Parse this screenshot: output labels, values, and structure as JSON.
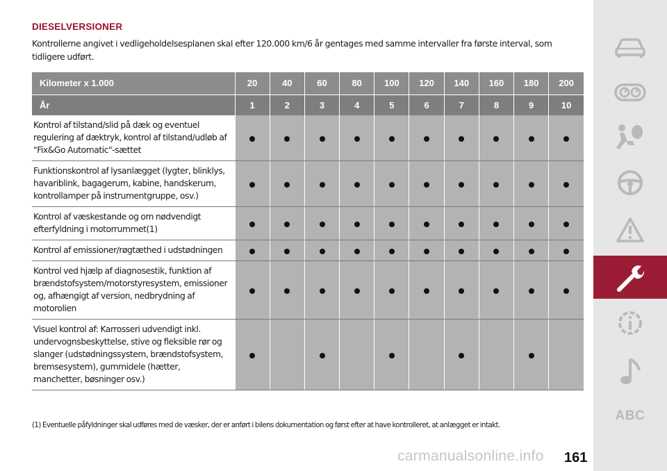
{
  "section": {
    "heading": "DIESELVERSIONER",
    "intro": "Kontrollerne angivet i vedligeholdelsesplanen skal efter 120.000 km/6 år gentages med samme intervaller fra første interval, som tidligere udført."
  },
  "table": {
    "header_km_label": "Kilometer x 1.000",
    "header_years_label": "År",
    "km": [
      "20",
      "40",
      "60",
      "80",
      "100",
      "120",
      "140",
      "160",
      "180",
      "200"
    ],
    "years": [
      "1",
      "2",
      "3",
      "4",
      "5",
      "6",
      "7",
      "8",
      "9",
      "10"
    ],
    "rows": [
      {
        "text": "Kontrol af tilstand/slid på dæk og eventuel regulering af dæktryk, kontrol af tilstand/udløb af \"Fix&Go Automatic\"-sættet",
        "marks": [
          true,
          true,
          true,
          true,
          true,
          true,
          true,
          true,
          true,
          true
        ]
      },
      {
        "text": "Funktionskontrol af lysanlægget (lygter, blinklys, havariblink, bagagerum, kabine, handskerum, kontrollamper på instrumentgruppe, osv.)",
        "marks": [
          true,
          true,
          true,
          true,
          true,
          true,
          true,
          true,
          true,
          true
        ]
      },
      {
        "text": "Kontrol af væskestande og om nødvendigt efterfyldning i motorrummet(1)",
        "marks": [
          true,
          true,
          true,
          true,
          true,
          true,
          true,
          true,
          true,
          true
        ]
      },
      {
        "text": "Kontrol af emissioner/røgtæthed i udstødningen",
        "marks": [
          true,
          true,
          true,
          true,
          true,
          true,
          true,
          true,
          true,
          true
        ]
      },
      {
        "text": "Kontrol ved hjælp af diagnosestik, funktion af brændstofsystem/motorstyresystem, emissioner og, afhængigt af version, nedbrydning af motorolien",
        "marks": [
          true,
          true,
          true,
          true,
          true,
          true,
          true,
          true,
          true,
          true
        ]
      },
      {
        "text": "Visuel kontrol af: Karrosseri udvendigt inkl. undervognsbeskyttelse, stive og fleksible rør og slanger (udstødningssystem, brændstofsystem, bremsesystem), gummidele (hætter, manchetter, bøsninger osv.)",
        "marks": [
          true,
          false,
          true,
          false,
          true,
          false,
          true,
          false,
          true,
          false
        ]
      }
    ]
  },
  "footnote": "(1) Eventuelle påfyldninger skal udføres med de væsker, der er anført i bilens dokumentation og først efter at have kontrolleret, at anlægget er intakt.",
  "page_number": "161",
  "watermark": "carmanualsonline.info",
  "sidebar": {
    "active_index": 5,
    "items": [
      {
        "icon": "car-icon"
      },
      {
        "icon": "dashboard-icon"
      },
      {
        "icon": "airbag-person-icon"
      },
      {
        "icon": "steering-wheel-icon"
      },
      {
        "icon": "warning-triangle-icon"
      },
      {
        "icon": "wrench-icon"
      },
      {
        "icon": "info-gear-icon"
      },
      {
        "icon": "music-note-icon"
      },
      {
        "icon": "abc-index",
        "label": "ABC"
      }
    ]
  },
  "colors": {
    "accent": "#9b0f2d",
    "sidebar_bg": "#e6e6e6",
    "sidebar_active": "#9b1d35",
    "sidebar_icon": "#b9b9b9",
    "header_bg": "#8c8c8c",
    "cell_bg": "#b3b3b3"
  }
}
